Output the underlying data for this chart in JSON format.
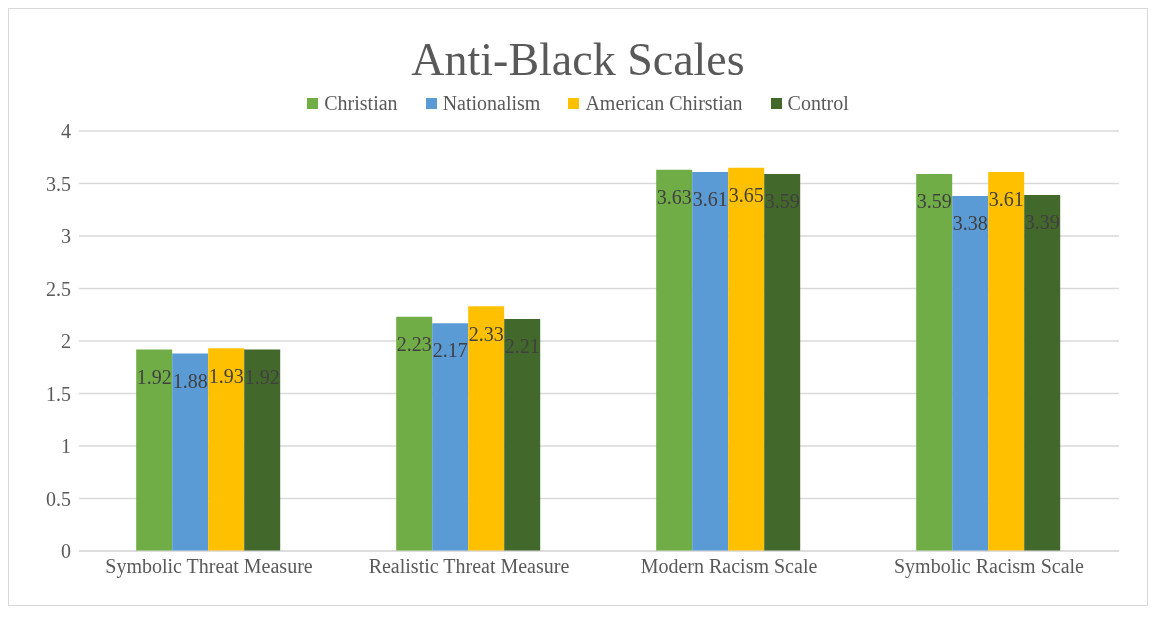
{
  "chart_data": {
    "type": "bar",
    "title": "Anti-Black Scales",
    "categories": [
      "Symbolic Threat Measure",
      "Realistic Threat Measure",
      "Modern Racism Scale",
      "Symbolic Racism Scale"
    ],
    "series": [
      {
        "name": "Christian",
        "color": "#70ad47",
        "values": [
          1.92,
          2.23,
          3.63,
          3.59
        ]
      },
      {
        "name": "Nationalism",
        "color": "#5b9bd5",
        "values": [
          1.88,
          2.17,
          3.61,
          3.38
        ]
      },
      {
        "name": "American Chirstian",
        "color": "#ffc000",
        "values": [
          1.93,
          2.33,
          3.65,
          3.61
        ]
      },
      {
        "name": "Control",
        "color": "#43682b",
        "values": [
          1.92,
          2.21,
          3.59,
          3.39
        ]
      }
    ],
    "ylim": [
      0,
      4
    ],
    "yticks": [
      0,
      0.5,
      1,
      1.5,
      2,
      2.5,
      3,
      3.5,
      4
    ],
    "grid": "y",
    "legend": "top",
    "data_labels": true
  }
}
